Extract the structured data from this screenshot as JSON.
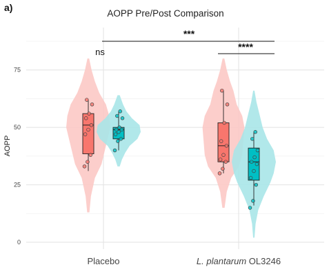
{
  "panel_label": "a)",
  "chart_data": {
    "type": "violin",
    "title": "AOPP Pre/Post Comparison",
    "ylabel": "AOPP",
    "xlabel": "",
    "ylim": [
      0,
      80
    ],
    "yticks": [
      0,
      25,
      50,
      75
    ],
    "grid": true,
    "categories": [
      "Placebo",
      "L. plantarum OL3246"
    ],
    "category_labels": [
      {
        "italic": "",
        "plain": "Placebo"
      },
      {
        "italic": "L. plantarum",
        "plain": " OL3246"
      }
    ],
    "colors": {
      "pre": "#f8766d",
      "post": "#00bfc4",
      "pre_violin": "#fcc9c5",
      "post_violin": "#a9e6e8"
    },
    "series": [
      {
        "values": [
          {
            "category": "Placebo",
            "box": {
              "q1": 38.5,
              "median": 51,
              "q3": 56,
              "whisker_low": 31,
              "whisker_high": 62
            },
            "violin": {
              "min": 13,
              "max": 80,
              "density": [
                [
                  13,
                  0.05
                ],
                [
                  20,
                  0.12
                ],
                [
                  28,
                  0.3
                ],
                [
                  34,
                  0.6
                ],
                [
                  40,
                  0.75
                ],
                [
                  46,
                  0.9
                ],
                [
                  50,
                  1.0
                ],
                [
                  55,
                  0.95
                ],
                [
                  60,
                  0.8
                ],
                [
                  65,
                  0.5
                ],
                [
                  70,
                  0.3
                ],
                [
                  75,
                  0.15
                ],
                [
                  80,
                  0.04
                ]
              ]
            },
            "points": [
              33,
              35,
              38,
              47,
              49,
              51,
              54,
              56,
              60,
              62
            ]
          },
          {
            "category": "L. plantarum OL3246",
            "box": {
              "q1": 35,
              "median": 42,
              "q3": 52,
              "whisker_low": 30,
              "whisker_high": 66
            },
            "violin": {
              "min": 15,
              "max": 80,
              "density": [
                [
                  15,
                  0.05
                ],
                [
                  22,
                  0.15
                ],
                [
                  28,
                  0.35
                ],
                [
                  33,
                  0.7
                ],
                [
                  38,
                  0.85
                ],
                [
                  44,
                  0.9
                ],
                [
                  50,
                  0.95
                ],
                [
                  55,
                  0.85
                ],
                [
                  60,
                  0.6
                ],
                [
                  66,
                  0.45
                ],
                [
                  70,
                  0.3
                ],
                [
                  75,
                  0.15
                ],
                [
                  80,
                  0.04
                ]
              ]
            },
            "points": [
              30,
              32,
              35,
              36,
              38,
              42,
              44,
              52,
              60,
              66
            ]
          }
        ]
      },
      {
        "values": [
          {
            "category": "Placebo",
            "box": {
              "q1": 45,
              "median": 49,
              "q3": 50,
              "whisker_low": 40,
              "whisker_high": 57
            },
            "violin": {
              "min": 33,
              "max": 64,
              "density": [
                [
                  33,
                  0.05
                ],
                [
                  36,
                  0.15
                ],
                [
                  39,
                  0.3
                ],
                [
                  42,
                  0.5
                ],
                [
                  45,
                  0.85
                ],
                [
                  48,
                  1.0
                ],
                [
                  51,
                  0.95
                ],
                [
                  54,
                  0.6
                ],
                [
                  57,
                  0.35
                ],
                [
                  60,
                  0.2
                ],
                [
                  64,
                  0.05
                ]
              ]
            },
            "points": [
              40,
              44,
              45,
              47,
              48,
              49,
              49,
              50,
              54,
              55,
              57
            ]
          },
          {
            "category": "L. plantarum OL3246",
            "box": {
              "q1": 27,
              "median": 35,
              "q3": 41,
              "whisker_low": 16,
              "whisker_high": 48
            },
            "violin": {
              "min": 2,
              "max": 66,
              "density": [
                [
                  2,
                  0.03
                ],
                [
                  8,
                  0.08
                ],
                [
                  14,
                  0.2
                ],
                [
                  20,
                  0.45
                ],
                [
                  26,
                  0.75
                ],
                [
                  30,
                  0.9
                ],
                [
                  35,
                  1.0
                ],
                [
                  40,
                  0.9
                ],
                [
                  45,
                  0.6
                ],
                [
                  50,
                  0.4
                ],
                [
                  56,
                  0.25
                ],
                [
                  61,
                  0.12
                ],
                [
                  66,
                  0.03
                ]
              ]
            },
            "points": [
              15,
              18,
              25,
              28,
              31,
              34,
              35,
              37,
              40,
              45,
              48
            ]
          }
        ]
      }
    ],
    "annotations": [
      {
        "label": "ns",
        "category": "Placebo"
      },
      {
        "label": "***",
        "from": "Placebo",
        "to": "L. plantarum OL3246"
      },
      {
        "label": "****",
        "category": "L. plantarum OL3246"
      }
    ]
  }
}
